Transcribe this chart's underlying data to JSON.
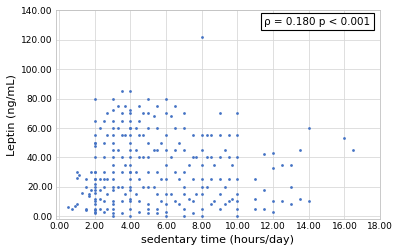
{
  "title": "",
  "xlabel": "sedentary time (hours/day)",
  "ylabel": "Leptin (ng/mL)",
  "xlim": [
    -0.2,
    18.0
  ],
  "ylim": [
    -2.0,
    140.0
  ],
  "xticks": [
    0.0,
    2.0,
    4.0,
    6.0,
    8.0,
    10.0,
    12.0,
    14.0,
    16.0,
    18.0
  ],
  "yticks": [
    0.0,
    20.0,
    40.0,
    60.0,
    80.0,
    100.0,
    120.0,
    140.0
  ],
  "annotation": "ρ = 0.180 p < 0.001",
  "dot_color": "#4472C4",
  "dot_size": 4,
  "background_color": "#ffffff",
  "grid_color": "#d9d9d9",
  "scatter_x": [
    0.5,
    0.7,
    0.9,
    1.0,
    1.0,
    1.0,
    1.1,
    1.3,
    1.5,
    1.5,
    1.5,
    1.5,
    1.7,
    1.7,
    1.8,
    1.8,
    2.0,
    2.0,
    2.0,
    2.0,
    2.0,
    2.0,
    2.0,
    2.0,
    2.0,
    2.0,
    2.0,
    2.0,
    2.0,
    2.0,
    2.0,
    2.0,
    2.0,
    2.0,
    2.0,
    2.0,
    2.0,
    2.0,
    2.3,
    2.3,
    2.3,
    2.3,
    2.3,
    2.5,
    2.5,
    2.5,
    2.5,
    2.5,
    2.5,
    2.5,
    2.5,
    2.7,
    2.7,
    2.7,
    2.7,
    2.7,
    3.0,
    3.0,
    3.0,
    3.0,
    3.0,
    3.0,
    3.0,
    3.0,
    3.0,
    3.0,
    3.0,
    3.0,
    3.0,
    3.0,
    3.0,
    3.0,
    3.0,
    3.0,
    3.3,
    3.3,
    3.3,
    3.3,
    3.5,
    3.5,
    3.5,
    3.5,
    3.5,
    3.5,
    3.5,
    3.5,
    3.5,
    3.7,
    3.7,
    3.7,
    3.7,
    4.0,
    4.0,
    4.0,
    4.0,
    4.0,
    4.0,
    4.0,
    4.0,
    4.0,
    4.0,
    4.0,
    4.0,
    4.0,
    4.0,
    4.0,
    4.0,
    4.0,
    4.0,
    4.0,
    4.0,
    4.3,
    4.3,
    4.3,
    4.3,
    4.5,
    4.5,
    4.5,
    4.5,
    4.5,
    4.5,
    4.5,
    4.7,
    4.7,
    4.7,
    4.7,
    5.0,
    5.0,
    5.0,
    5.0,
    5.0,
    5.0,
    5.0,
    5.0,
    5.0,
    5.0,
    5.3,
    5.3,
    5.3,
    5.5,
    5.5,
    5.5,
    5.5,
    5.5,
    5.5,
    5.5,
    5.7,
    5.7,
    5.7,
    6.0,
    6.0,
    6.0,
    6.0,
    6.0,
    6.0,
    6.0,
    6.0,
    6.0,
    6.0,
    6.3,
    6.3,
    6.3,
    6.5,
    6.5,
    6.5,
    6.5,
    6.5,
    6.7,
    6.7,
    6.7,
    7.0,
    7.0,
    7.0,
    7.0,
    7.0,
    7.0,
    7.0,
    7.0,
    7.3,
    7.3,
    7.5,
    7.5,
    7.5,
    7.5,
    7.5,
    7.7,
    7.7,
    8.0,
    8.0,
    8.0,
    8.0,
    8.0,
    8.0,
    8.0,
    8.0,
    8.0,
    8.3,
    8.3,
    8.3,
    8.5,
    8.5,
    8.5,
    8.5,
    8.7,
    8.7,
    9.0,
    9.0,
    9.0,
    9.0,
    9.0,
    9.0,
    9.3,
    9.3,
    9.3,
    9.5,
    9.5,
    9.5,
    9.5,
    9.7,
    9.7,
    10.0,
    10.0,
    10.0,
    10.0,
    10.0,
    10.0,
    10.0,
    10.0,
    11.0,
    11.0,
    11.0,
    11.5,
    11.5,
    11.5,
    12.0,
    12.0,
    12.0,
    12.0,
    12.5,
    12.5,
    13.0,
    13.0,
    13.0,
    13.5,
    13.5,
    14.0,
    14.0,
    16.0,
    16.5
  ],
  "scatter_y": [
    6,
    5,
    7,
    26,
    30,
    8,
    28,
    16,
    20,
    25,
    5,
    4,
    14,
    15,
    30,
    18,
    80,
    3,
    5,
    50,
    48,
    30,
    20,
    16,
    25,
    22,
    10,
    4,
    55,
    25,
    18,
    12,
    65,
    50,
    40,
    30,
    2,
    8,
    60,
    25,
    18,
    12,
    5,
    65,
    50,
    40,
    30,
    25,
    20,
    10,
    3,
    70,
    55,
    25,
    15,
    5,
    80,
    65,
    60,
    55,
    50,
    45,
    40,
    35,
    30,
    25,
    20,
    10,
    5,
    2,
    0,
    72,
    18,
    8,
    75,
    60,
    45,
    20,
    85,
    70,
    65,
    55,
    40,
    30,
    20,
    10,
    2,
    75,
    55,
    35,
    15,
    85,
    70,
    65,
    60,
    55,
    50,
    40,
    35,
    30,
    25,
    20,
    10,
    5,
    0,
    72,
    18,
    60,
    45,
    30,
    12,
    60,
    45,
    30,
    15,
    75,
    65,
    55,
    40,
    25,
    10,
    3,
    70,
    55,
    40,
    20,
    80,
    70,
    60,
    50,
    40,
    30,
    20,
    8,
    5,
    2,
    68,
    45,
    20,
    75,
    60,
    45,
    30,
    15,
    5,
    2,
    50,
    25,
    10,
    80,
    70,
    55,
    45,
    35,
    25,
    15,
    8,
    3,
    0,
    68,
    40,
    15,
    75,
    60,
    45,
    30,
    10,
    50,
    25,
    8,
    70,
    60,
    45,
    30,
    20,
    15,
    5,
    0,
    35,
    12,
    55,
    40,
    25,
    10,
    2,
    40,
    15,
    122,
    55,
    45,
    35,
    25,
    20,
    15,
    5,
    0,
    55,
    40,
    20,
    55,
    40,
    25,
    8,
    35,
    10,
    70,
    55,
    40,
    25,
    15,
    5,
    45,
    20,
    8,
    55,
    40,
    25,
    10,
    35,
    12,
    70,
    55,
    40,
    25,
    15,
    10,
    5,
    0,
    25,
    12,
    5,
    42,
    18,
    5,
    33,
    43,
    10,
    3,
    35,
    10,
    35,
    20,
    8,
    45,
    12,
    60,
    10,
    53,
    45
  ]
}
